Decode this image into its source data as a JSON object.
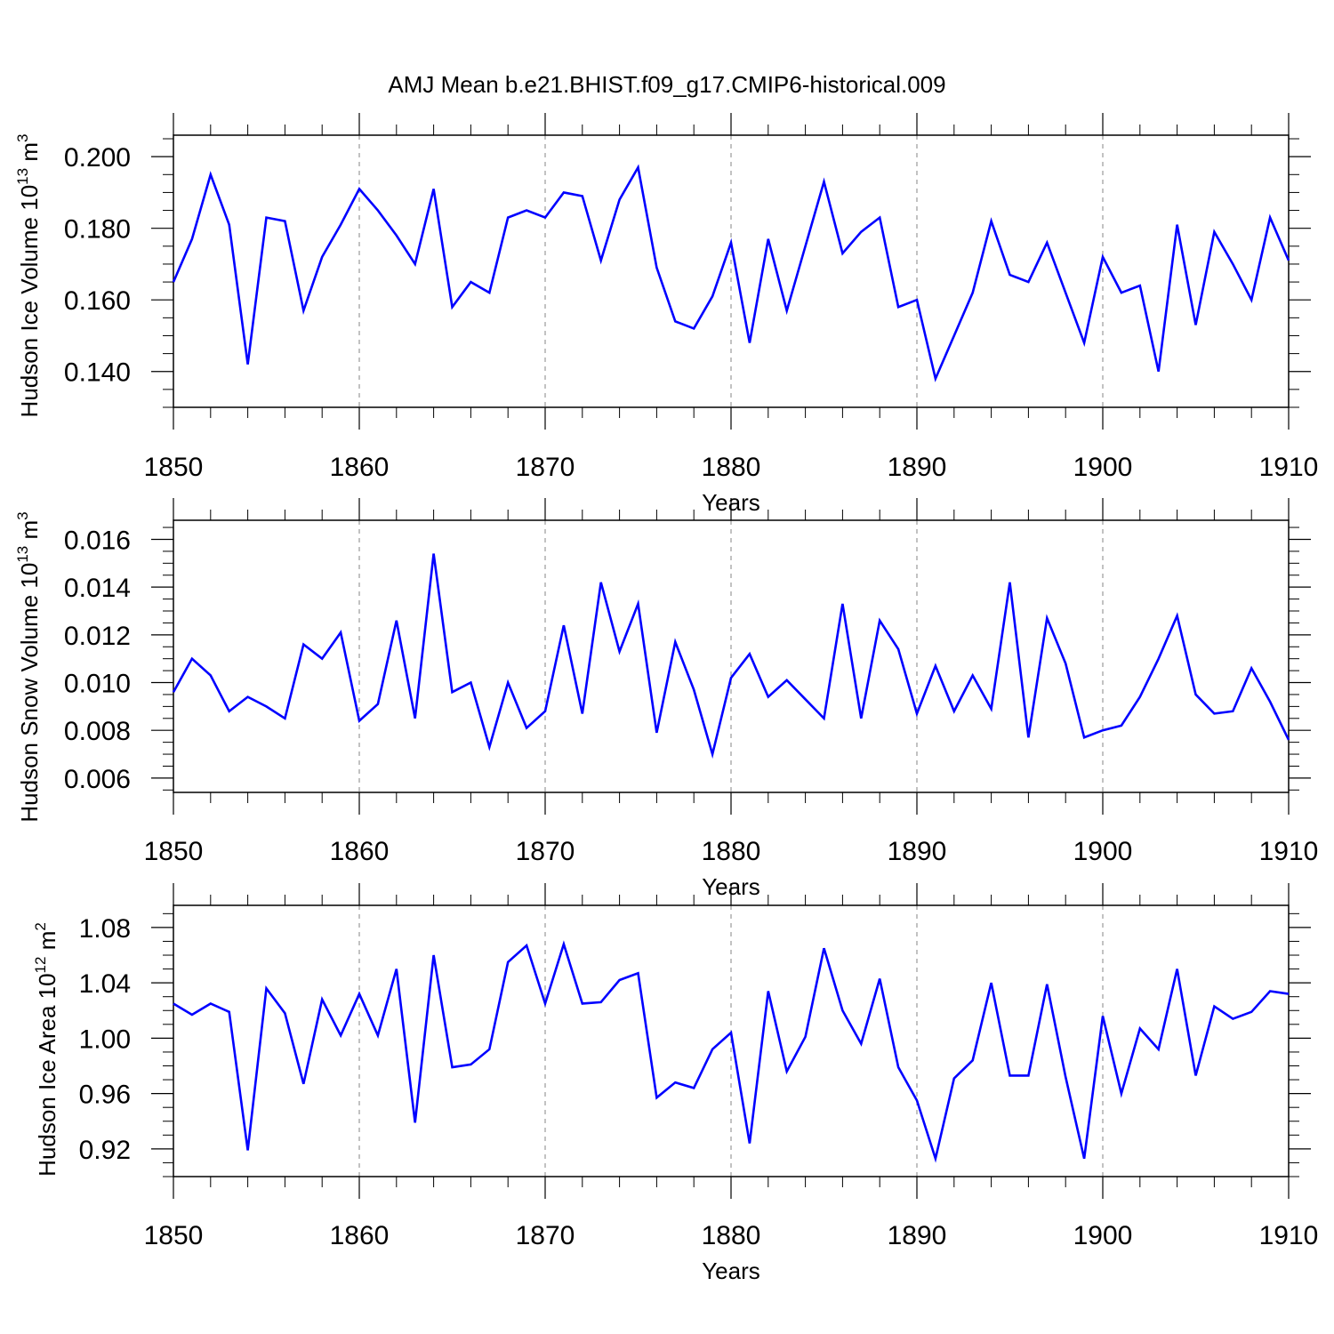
{
  "title": "AMJ Mean b.e21.BHIST.f09_g17.CMIP6-historical.009",
  "chart_data": [
    {
      "type": "line",
      "title": "",
      "xlabel": "Years",
      "ylabel_main": "Hudson Ice Volume 10",
      "ylabel_exp": "13",
      "ylabel_unit": " m",
      "ylabel_unit_exp": "3",
      "xlim": [
        1850,
        1910
      ],
      "ylim": [
        0.13,
        0.206
      ],
      "yticks": [
        0.14,
        0.16,
        0.18,
        0.2
      ],
      "ytick_labels": [
        "0.140",
        "0.160",
        "0.180",
        "0.200"
      ],
      "yminor_step": 0.005,
      "xticks": [
        1850,
        1860,
        1870,
        1880,
        1890,
        1900,
        1910
      ],
      "xtick_labels": [
        "1850",
        "1860",
        "1870",
        "1880",
        "1890",
        "1900",
        "1910"
      ],
      "line_color": "#0000ff",
      "series": [
        {
          "name": "Hudson Ice Volume",
          "x_start": 1850,
          "values": [
            0.165,
            0.177,
            0.195,
            0.181,
            0.142,
            0.183,
            0.182,
            0.157,
            0.172,
            0.181,
            0.191,
            0.185,
            0.178,
            0.17,
            0.191,
            0.158,
            0.165,
            0.162,
            0.183,
            0.185,
            0.183,
            0.19,
            0.189,
            0.171,
            0.188,
            0.197,
            0.169,
            0.154,
            0.152,
            0.161,
            0.176,
            0.148,
            0.177,
            0.157,
            0.175,
            0.193,
            0.173,
            0.179,
            0.183,
            0.158,
            0.16,
            0.138,
            0.15,
            0.162,
            0.182,
            0.167,
            0.165,
            0.176,
            0.162,
            0.148,
            0.172,
            0.162,
            0.164,
            0.14,
            0.181,
            0.153,
            0.179,
            0.17,
            0.16,
            0.183,
            0.171
          ]
        }
      ]
    },
    {
      "type": "line",
      "title": "",
      "xlabel": "Years",
      "ylabel_main": "Hudson Snow Volume 10",
      "ylabel_exp": "13",
      "ylabel_unit": " m",
      "ylabel_unit_exp": "3",
      "xlim": [
        1850,
        1910
      ],
      "ylim": [
        0.0054,
        0.0168
      ],
      "yticks": [
        0.006,
        0.008,
        0.01,
        0.012,
        0.014,
        0.016
      ],
      "ytick_labels": [
        "0.006",
        "0.008",
        "0.010",
        "0.012",
        "0.014",
        "0.016"
      ],
      "yminor_step": 0.0005,
      "xticks": [
        1850,
        1860,
        1870,
        1880,
        1890,
        1900,
        1910
      ],
      "xtick_labels": [
        "1850",
        "1860",
        "1870",
        "1880",
        "1890",
        "1900",
        "1910"
      ],
      "line_color": "#0000ff",
      "series": [
        {
          "name": "Hudson Snow Volume",
          "x_start": 1850,
          "values": [
            0.0096,
            0.011,
            0.0103,
            0.0088,
            0.0094,
            0.009,
            0.0085,
            0.0116,
            0.011,
            0.0121,
            0.0084,
            0.0091,
            0.0126,
            0.0085,
            0.0154,
            0.0096,
            0.01,
            0.0073,
            0.01,
            0.0081,
            0.0088,
            0.0124,
            0.0087,
            0.0142,
            0.0113,
            0.0133,
            0.0079,
            0.0117,
            0.0097,
            0.007,
            0.0102,
            0.0112,
            0.0094,
            0.0101,
            0.0093,
            0.0085,
            0.0133,
            0.0085,
            0.0126,
            0.0114,
            0.0087,
            0.0107,
            0.0088,
            0.0103,
            0.0089,
            0.0142,
            0.0077,
            0.0127,
            0.0108,
            0.0077,
            0.008,
            0.0082,
            0.0094,
            0.011,
            0.0128,
            0.0095,
            0.0087,
            0.0088,
            0.0106,
            0.0092,
            0.0076
          ]
        }
      ]
    },
    {
      "type": "line",
      "title": "",
      "xlabel": "Years",
      "ylabel_main": "Hudson Ice Area 10",
      "ylabel_exp": "12",
      "ylabel_unit": " m",
      "ylabel_unit_exp": "2",
      "xlim": [
        1850,
        1910
      ],
      "ylim": [
        0.9,
        1.096
      ],
      "yticks": [
        0.92,
        0.96,
        1.0,
        1.04,
        1.08
      ],
      "ytick_labels": [
        "0.92",
        "0.96",
        "1.00",
        "1.04",
        "1.08"
      ],
      "yminor_step": 0.01,
      "xticks": [
        1850,
        1860,
        1870,
        1880,
        1890,
        1900,
        1910
      ],
      "xtick_labels": [
        "1850",
        "1860",
        "1870",
        "1880",
        "1890",
        "1900",
        "1910"
      ],
      "line_color": "#0000ff",
      "series": [
        {
          "name": "Hudson Ice Area",
          "x_start": 1850,
          "values": [
            1.025,
            1.017,
            1.025,
            1.019,
            0.919,
            1.036,
            1.018,
            0.967,
            1.028,
            1.002,
            1.032,
            1.002,
            1.05,
            0.939,
            1.06,
            0.979,
            0.981,
            0.992,
            1.055,
            1.067,
            1.025,
            1.068,
            1.025,
            1.026,
            1.042,
            1.047,
            0.957,
            0.968,
            0.964,
            0.992,
            1.004,
            0.924,
            1.034,
            0.976,
            1.001,
            1.065,
            1.02,
            0.996,
            1.043,
            0.979,
            0.955,
            0.913,
            0.971,
            0.984,
            1.04,
            0.973,
            0.973,
            1.039,
            0.972,
            0.913,
            1.016,
            0.96,
            1.007,
            0.992,
            1.05,
            0.973,
            1.023,
            1.014,
            1.019,
            1.034,
            1.032
          ]
        }
      ]
    }
  ]
}
